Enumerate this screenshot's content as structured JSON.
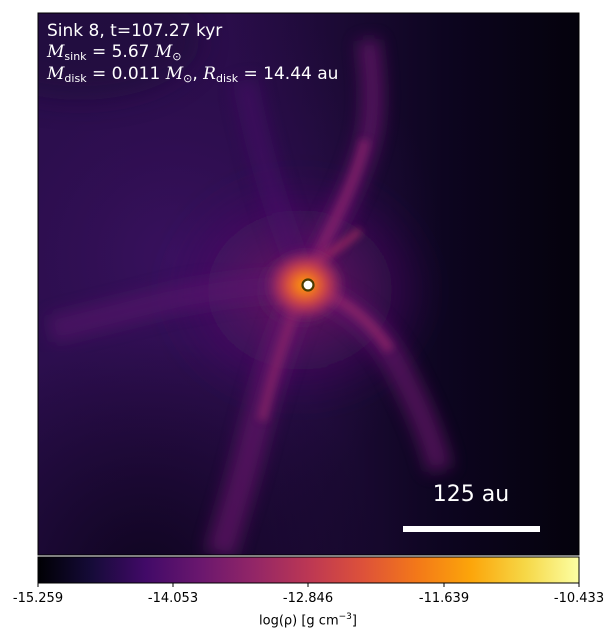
{
  "annotation": {
    "line1": "Sink 8, t=107.27 kyr",
    "msink_symbol": "M",
    "msink_sub": "sink",
    "msink_value": "= 5.67",
    "msink_unit": "M",
    "msink_unit_sub": "⊙",
    "mdisk_symbol": "M",
    "mdisk_sub": "disk",
    "mdisk_value": "= 0.011",
    "mdisk_unit": "M",
    "mdisk_unit_sub": "⊙",
    "rdisk_symbol": "R",
    "rdisk_sub": "disk",
    "rdisk_value": "= 14.44 au"
  },
  "scale_bar": {
    "label": "125 au"
  },
  "colorbar": {
    "ticks": [
      "-15.259",
      "-14.053",
      "-12.846",
      "-11.639",
      "-10.433"
    ],
    "label_main": "log(ρ) [g cm",
    "label_exp": "−3",
    "label_close": "]",
    "colormap": "inferno"
  },
  "colors": {
    "background_dark": "#0b0620",
    "sink_marker_fill": "#ffffff",
    "sink_marker_ring": "#4a3a00"
  }
}
